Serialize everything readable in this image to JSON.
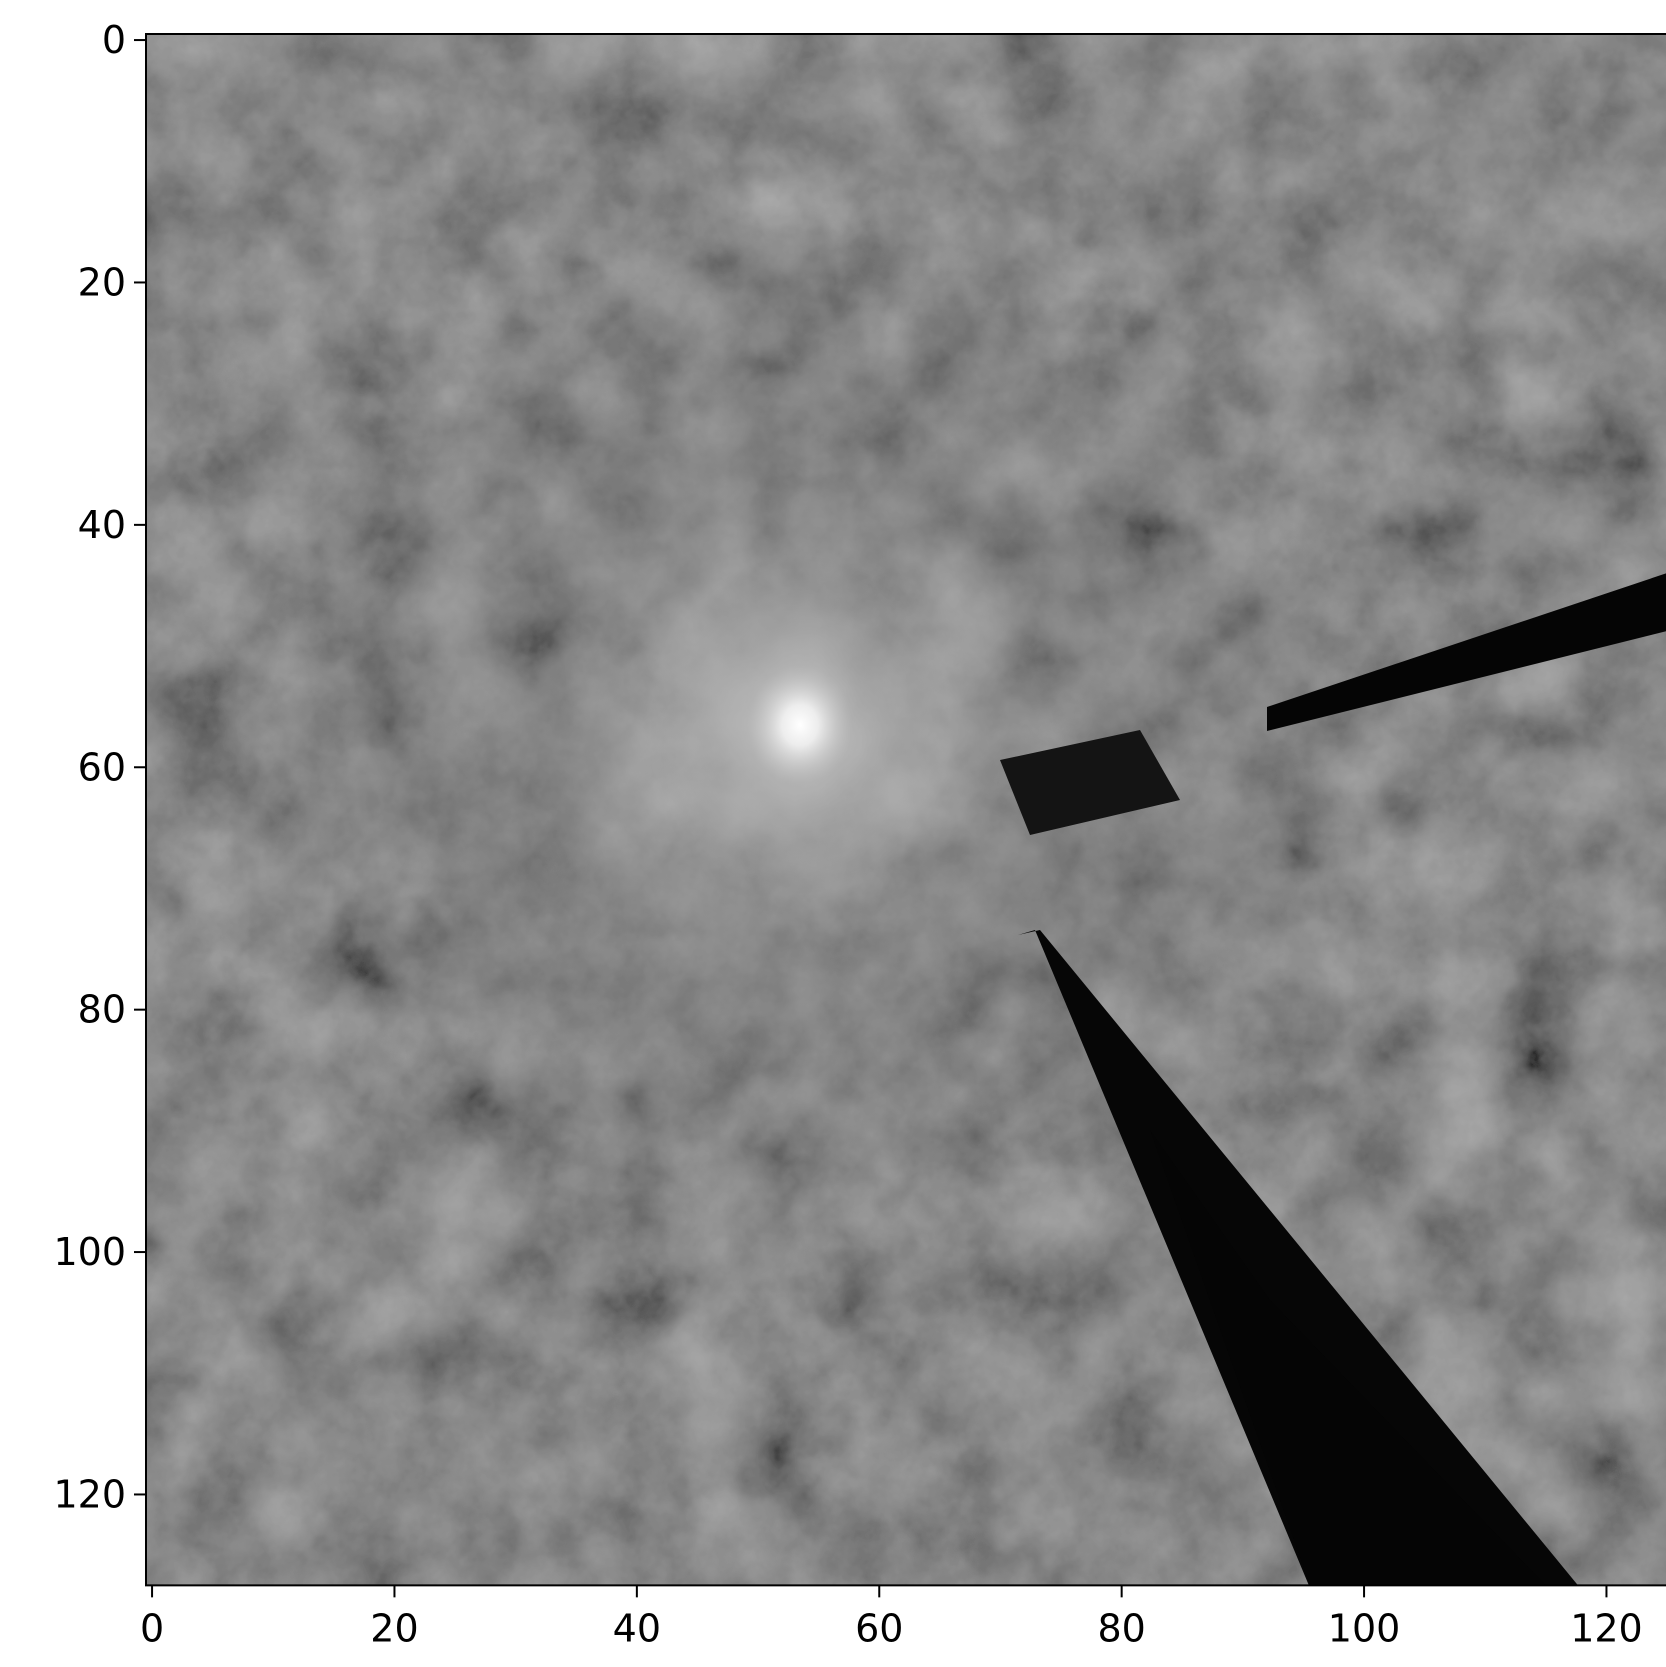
{
  "chart_data": {
    "type": "image",
    "xlim": [
      -0.5,
      127.5
    ],
    "ylim": [
      127.5,
      -0.5
    ],
    "xticks": [
      0,
      20,
      40,
      60,
      80,
      100,
      120
    ],
    "yticks": [
      0,
      20,
      40,
      60,
      80,
      100,
      120
    ],
    "colormap": "gray"
  }
}
